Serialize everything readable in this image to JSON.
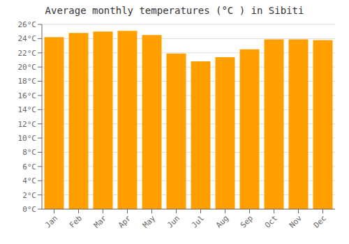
{
  "chart_data": {
    "type": "bar",
    "title": "Average monthly temperatures (°C ) in Sibiti",
    "categories": [
      "Jan",
      "Feb",
      "Mar",
      "Apr",
      "May",
      "Jun",
      "Jul",
      "Aug",
      "Sep",
      "Oct",
      "Nov",
      "Dec"
    ],
    "values": [
      24.2,
      24.8,
      25.0,
      25.1,
      24.5,
      21.9,
      20.8,
      21.4,
      22.5,
      23.9,
      23.9,
      23.8
    ],
    "color": "#FFA000",
    "ylim": [
      0,
      26
    ],
    "yticks": [
      {
        "value": 0,
        "label": "0°C"
      },
      {
        "value": 2,
        "label": "2°C"
      },
      {
        "value": 4,
        "label": "4°C"
      },
      {
        "value": 6,
        "label": "6°C"
      },
      {
        "value": 8,
        "label": "8°C"
      },
      {
        "value": 10,
        "label": "10°C"
      },
      {
        "value": 12,
        "label": "12°C"
      },
      {
        "value": 14,
        "label": "14°C"
      },
      {
        "value": 16,
        "label": "16°C"
      },
      {
        "value": 18,
        "label": "18°C"
      },
      {
        "value": 20,
        "label": "20°C"
      },
      {
        "value": 22,
        "label": "22°C"
      },
      {
        "value": 24,
        "label": "24°C"
      },
      {
        "value": 26,
        "label": "26°C"
      }
    ],
    "grid": true
  }
}
